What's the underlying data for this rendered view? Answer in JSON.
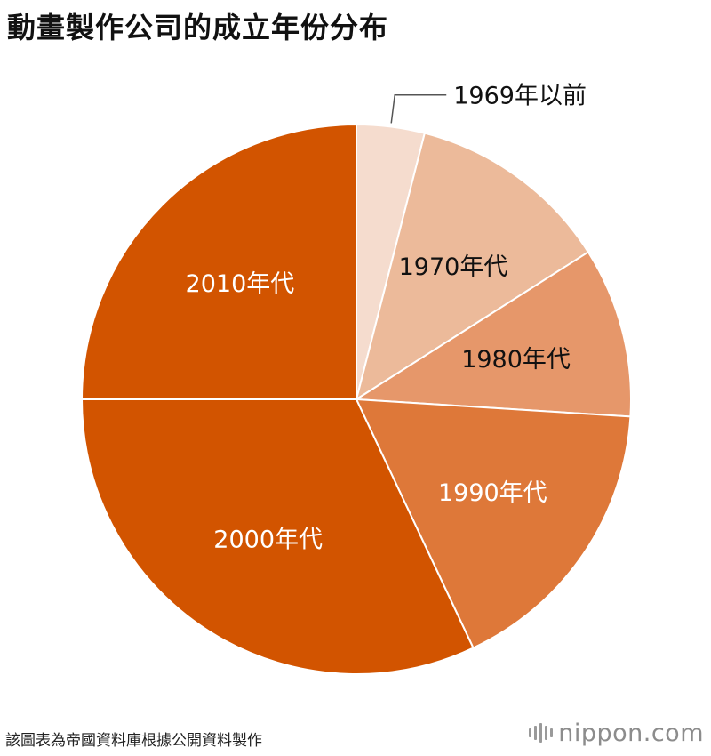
{
  "title": "動畫製作公司的成立年份分布",
  "footer": {
    "source": "該圖表為帝國資料庫根據公開資料製作",
    "brand": "nippon.com",
    "brand_icon": "bar-logo-icon"
  },
  "chart_data": {
    "type": "pie",
    "title": "動畫製作公司的成立年份分布",
    "start_angle_deg": 0,
    "direction": "clockwise",
    "slices": [
      {
        "label": "1969年以前",
        "value": 4.0,
        "color": "#f5dcce",
        "label_color": "#111111"
      },
      {
        "label": "1970年代",
        "value": 12.0,
        "color": "#ecba9a",
        "label_color": "#111111"
      },
      {
        "label": "1980年代",
        "value": 10.0,
        "color": "#e6976a",
        "label_color": "#111111"
      },
      {
        "label": "1990年代",
        "value": 17.0,
        "color": "#de7839",
        "label_color": "#ffffff"
      },
      {
        "label": "2000年代",
        "value": 32.0,
        "color": "#d25400",
        "label_color": "#ffffff"
      },
      {
        "label": "2010年代",
        "value": 25.0,
        "color": "#d25400",
        "label_color": "#ffffff"
      }
    ]
  }
}
